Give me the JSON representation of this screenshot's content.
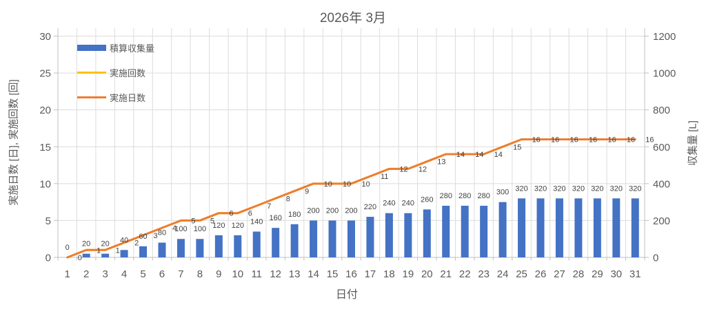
{
  "title": "2026年 3月",
  "colors": {
    "bar": "#4472C4",
    "count_line": "#FFC000",
    "days_line": "#ED7D31",
    "grid": "#DCDCDC",
    "axis": "#BFBFBF",
    "tick_text": "#595959",
    "data_label_text": "#404040"
  },
  "legend": [
    {
      "label": "積算収集量",
      "swatch": "bar",
      "color_key": "bar"
    },
    {
      "label": "実施回数",
      "swatch": "line",
      "color_key": "count_line"
    },
    {
      "label": "実施日数",
      "swatch": "line",
      "color_key": "days_line"
    }
  ],
  "axes": {
    "x": {
      "title": "日付",
      "ticks": [
        1,
        2,
        3,
        4,
        5,
        6,
        7,
        8,
        9,
        10,
        11,
        12,
        13,
        14,
        15,
        16,
        17,
        18,
        19,
        20,
        21,
        22,
        23,
        24,
        25,
        26,
        27,
        28,
        29,
        30,
        31
      ]
    },
    "y_left": {
      "title": "実施日数 [日], 実施回数 [回]",
      "ticks": [
        0,
        5,
        10,
        15,
        20,
        25,
        30
      ],
      "range": [
        0,
        30
      ]
    },
    "y_right": {
      "title": "収集量 [L]",
      "ticks": [
        0,
        200,
        400,
        600,
        800,
        1000,
        1200
      ],
      "range": [
        0,
        1200
      ]
    }
  },
  "chart_data": {
    "type": "bar",
    "title": "2026年 3月",
    "xlabel": "日付",
    "ylabel_left": "実施日数 [日], 実施回数 [回]",
    "ylabel_right": "収集量 [L]",
    "ylim_left": [
      0,
      30
    ],
    "ylim_right": [
      0,
      1200
    ],
    "grid": true,
    "legend_position": "inside-top-left",
    "categories": [
      1,
      2,
      3,
      4,
      5,
      6,
      7,
      8,
      9,
      10,
      11,
      12,
      13,
      14,
      15,
      16,
      17,
      18,
      19,
      20,
      21,
      22,
      23,
      24,
      25,
      26,
      27,
      28,
      29,
      30,
      31
    ],
    "series": [
      {
        "name": "積算収集量",
        "type": "bar",
        "axis": "right",
        "color_key": "bar",
        "values": [
          0,
          20,
          20,
          40,
          60,
          80,
          100,
          100,
          120,
          120,
          140,
          160,
          180,
          200,
          200,
          200,
          220,
          240,
          240,
          260,
          280,
          280,
          280,
          300,
          320,
          320,
          320,
          320,
          320,
          320,
          320
        ]
      },
      {
        "name": "実施回数",
        "type": "line",
        "axis": "left",
        "color_key": "count_line",
        "hidden_behind": "実施日数",
        "values": [
          0,
          1,
          1,
          2,
          3,
          4,
          5,
          5,
          6,
          6,
          7,
          8,
          9,
          10,
          10,
          10,
          11,
          12,
          12,
          13,
          14,
          14,
          14,
          15,
          16,
          16,
          16,
          16,
          16,
          16,
          16
        ]
      },
      {
        "name": "実施日数",
        "type": "line",
        "axis": "left",
        "color_key": "days_line",
        "values": [
          0,
          1,
          1,
          2,
          3,
          4,
          5,
          5,
          6,
          6,
          7,
          8,
          9,
          10,
          10,
          10,
          11,
          12,
          12,
          13,
          14,
          14,
          14,
          15,
          16,
          16,
          16,
          16,
          16,
          16,
          16
        ]
      }
    ]
  }
}
